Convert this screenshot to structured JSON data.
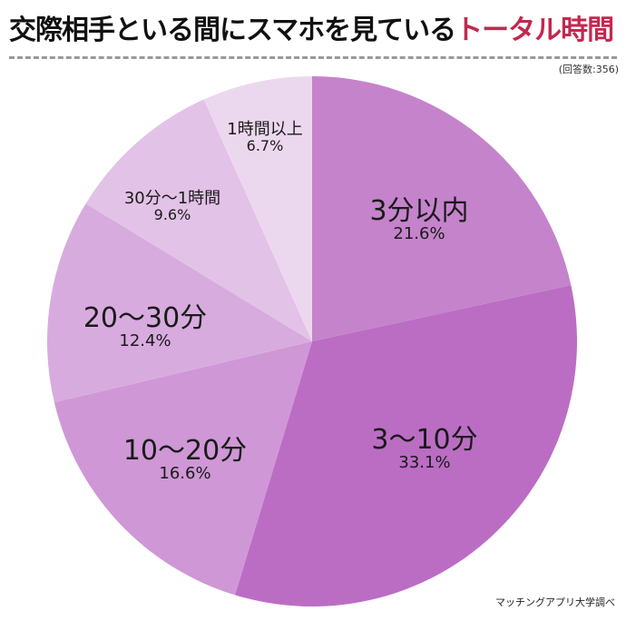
{
  "title": {
    "main": "交際相手といる間にスマホを見ている",
    "accent": "トータル時間",
    "accent_color": "#c4284f"
  },
  "respondents": "(回答数:356)",
  "source": "マッチングアプリ大学調べ",
  "chart_data": {
    "type": "pie",
    "title": "交際相手といる間にスマホを見ているトータル時間",
    "n": 356,
    "start_angle_deg": 0,
    "direction": "clockwise",
    "categories": [
      "3分以内",
      "3〜10分",
      "10〜20分",
      "20〜30分",
      "30分〜1時間",
      "1時間以上"
    ],
    "values": [
      21.6,
      33.1,
      16.6,
      12.4,
      9.6,
      6.7
    ],
    "unit": "%",
    "colors": [
      "#c583cb",
      "#bb6dc4",
      "#cf97d6",
      "#d8abdf",
      "#e3c2e7",
      "#ecd8ee"
    ]
  },
  "labels": [
    {
      "name": "3分以内",
      "pct": "21.6%"
    },
    {
      "name": "3〜10分",
      "pct": "33.1%"
    },
    {
      "name": "10〜20分",
      "pct": "16.6%"
    },
    {
      "name": "20〜30分",
      "pct": "12.4%"
    },
    {
      "name": "30分〜1時間",
      "pct": "9.6%"
    },
    {
      "name": "1時間以上",
      "pct": "6.7%"
    }
  ]
}
